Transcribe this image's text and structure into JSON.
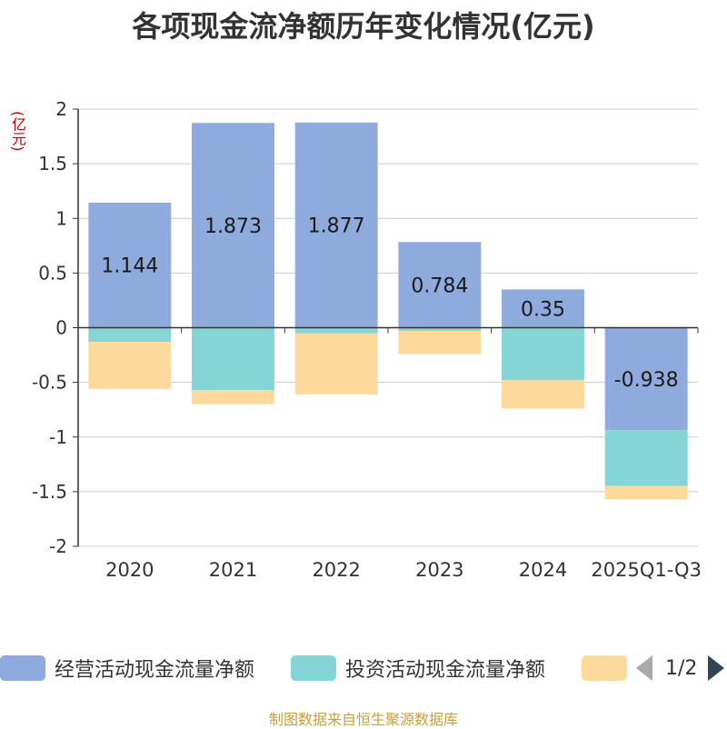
{
  "chart_data": {
    "type": "bar",
    "stacked": true,
    "title": "各项现金流净额历年变化情况(亿元)",
    "unit_label": "(亿元)",
    "categories": [
      "2020",
      "2021",
      "2022",
      "2023",
      "2024",
      "2025Q1-Q3"
    ],
    "ylim": [
      -2,
      2
    ],
    "yticks": [
      2,
      1.5,
      1,
      0.5,
      0,
      -0.5,
      -1,
      -1.5,
      -2
    ],
    "ytick_labels": [
      "2",
      "1.5",
      "1",
      "0.5",
      "0",
      "-0.5",
      "-1",
      "-1.5",
      "-2"
    ],
    "grid": true,
    "series": [
      {
        "name": "经营活动现金流量净额",
        "color": "#8faadc",
        "values": [
          1.144,
          1.873,
          1.877,
          0.784,
          0.35,
          -0.938
        ],
        "labels": [
          "1.144",
          "1.873",
          "1.877",
          "0.784",
          "0.35",
          "-0.938"
        ]
      },
      {
        "name": "投资活动现金流量净额",
        "color": "#86d5d6",
        "values": [
          -0.13,
          -0.57,
          -0.05,
          -0.03,
          -0.48,
          -0.51
        ]
      },
      {
        "name": "",
        "color": "#fdd99c",
        "values": [
          -0.43,
          -0.13,
          -0.56,
          -0.21,
          -0.26,
          -0.12
        ]
      }
    ]
  },
  "legend": {
    "items": [
      {
        "label": "经营活动现金流量净额",
        "color": "#8faadc"
      },
      {
        "label": "投资活动现金流量净额",
        "color": "#86d5d6"
      },
      {
        "label": "",
        "color": "#fdd99c"
      }
    ],
    "page_indicator": "1/2"
  },
  "source_text": "制图数据来自恒生聚源数据库"
}
